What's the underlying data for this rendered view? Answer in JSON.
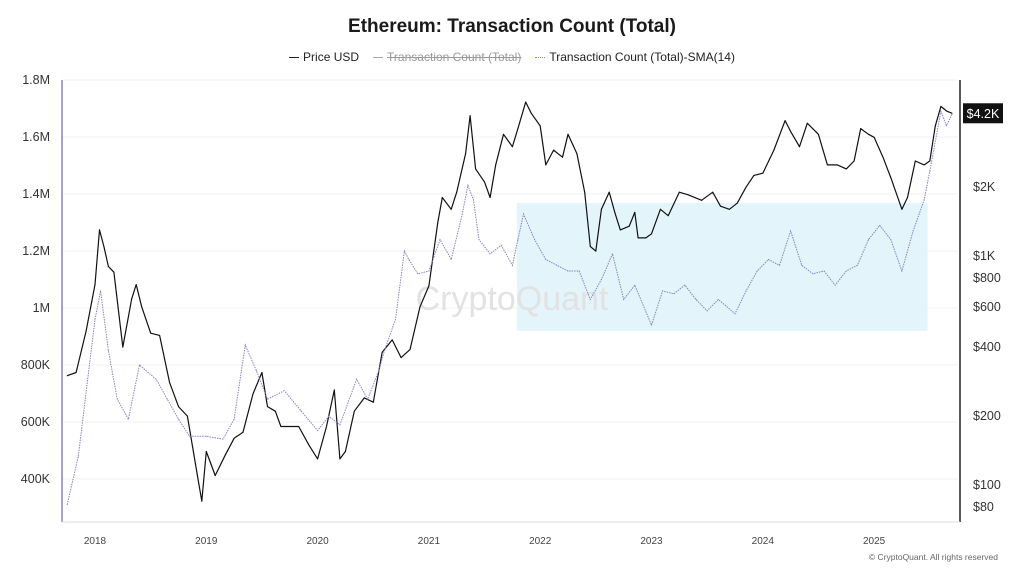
{
  "chart_data": {
    "type": "line",
    "title": "Ethereum: Transaction Count (Total)",
    "legend": [
      {
        "label": "Price USD",
        "active": true
      },
      {
        "label": "Transaction Count (Total)",
        "active": false
      },
      {
        "label": "Transaction Count (Total)-SMA(14)",
        "active": true
      }
    ],
    "watermark": "CryptoQuant",
    "copyright": "© CryptoQuant. All rights reserved",
    "x_ticks": [
      "2018",
      "2019",
      "2020",
      "2021",
      "2022",
      "2023",
      "2024",
      "2025"
    ],
    "xlim": [
      2017.7,
      2025.73
    ],
    "left_axis": {
      "ticks": [
        400000,
        600000,
        800000,
        1000000,
        1200000,
        1400000,
        1600000,
        1800000
      ],
      "tick_labels": [
        "400K",
        "600K",
        "800K",
        "1M",
        "1.2M",
        "1.4M",
        "1.6M",
        "1.8M"
      ],
      "range": [
        260000,
        1800000
      ]
    },
    "right_axis": {
      "scale": "log",
      "ticks": [
        80,
        100,
        200,
        400,
        600,
        800,
        1000,
        2000
      ],
      "tick_labels": [
        "$80",
        "$100",
        "$200",
        "$400",
        "$600",
        "$800",
        "$1K",
        "$2K"
      ],
      "current_label": "$4.2K",
      "current_value": 4200
    },
    "highlight_box": {
      "x": [
        2021.79,
        2025.48
      ],
      "y": [
        920000,
        1369000
      ],
      "color": "#e3f4fa"
    },
    "colors": {
      "price": "#111111",
      "sma": "#8a83c4",
      "left_axis": "#8a83c4"
    },
    "series": [
      {
        "name": "Price USD",
        "axis": "right",
        "x": [
          2017.75,
          2017.83,
          2017.92,
          2018.0,
          2018.04,
          2018.08,
          2018.12,
          2018.17,
          2018.25,
          2018.33,
          2018.37,
          2018.42,
          2018.5,
          2018.58,
          2018.67,
          2018.75,
          2018.83,
          2018.92,
          2018.96,
          2019.0,
          2019.08,
          2019.17,
          2019.25,
          2019.33,
          2019.42,
          2019.5,
          2019.55,
          2019.62,
          2019.67,
          2019.75,
          2019.83,
          2019.92,
          2020.0,
          2020.08,
          2020.15,
          2020.2,
          2020.25,
          2020.33,
          2020.42,
          2020.5,
          2020.58,
          2020.67,
          2020.75,
          2020.83,
          2020.92,
          2021.0,
          2021.08,
          2021.12,
          2021.2,
          2021.25,
          2021.33,
          2021.37,
          2021.42,
          2021.5,
          2021.55,
          2021.6,
          2021.67,
          2021.75,
          2021.8,
          2021.87,
          2021.92,
          2022.0,
          2022.05,
          2022.12,
          2022.2,
          2022.25,
          2022.33,
          2022.4,
          2022.45,
          2022.5,
          2022.55,
          2022.62,
          2022.67,
          2022.72,
          2022.8,
          2022.85,
          2022.88,
          2022.95,
          2023.0,
          2023.08,
          2023.15,
          2023.25,
          2023.33,
          2023.45,
          2023.55,
          2023.62,
          2023.7,
          2023.77,
          2023.85,
          2023.92,
          2024.0,
          2024.1,
          2024.2,
          2024.25,
          2024.33,
          2024.4,
          2024.5,
          2024.58,
          2024.67,
          2024.75,
          2024.82,
          2024.88,
          2024.95,
          2025.0,
          2025.08,
          2025.15,
          2025.25,
          2025.3,
          2025.37,
          2025.45,
          2025.5,
          2025.55,
          2025.6,
          2025.65,
          2025.7
        ],
        "values": [
          300,
          310,
          470,
          750,
          1300,
          1100,
          900,
          850,
          400,
          650,
          750,
          600,
          460,
          450,
          280,
          220,
          200,
          110,
          85,
          140,
          110,
          135,
          160,
          170,
          250,
          310,
          220,
          210,
          180,
          180,
          180,
          150,
          130,
          180,
          260,
          130,
          140,
          210,
          240,
          230,
          380,
          430,
          360,
          390,
          600,
          740,
          1400,
          1800,
          1600,
          1900,
          2800,
          4100,
          2400,
          2100,
          1800,
          2500,
          3400,
          3000,
          3600,
          4700,
          4200,
          3700,
          2500,
          2900,
          2700,
          3400,
          2800,
          1900,
          1100,
          1050,
          1600,
          1900,
          1550,
          1300,
          1350,
          1550,
          1200,
          1200,
          1250,
          1600,
          1500,
          1900,
          1850,
          1750,
          1900,
          1650,
          1600,
          1700,
          2000,
          2250,
          2300,
          2900,
          3900,
          3500,
          3000,
          3800,
          3400,
          2500,
          2500,
          2400,
          2600,
          3600,
          3400,
          3300,
          2700,
          2200,
          1600,
          1800,
          2600,
          2500,
          2600,
          3700,
          4500,
          4300,
          4200
        ]
      },
      {
        "name": "Transaction Count (Total)-SMA(14)",
        "axis": "left",
        "x": [
          2017.75,
          2017.85,
          2018.0,
          2018.05,
          2018.12,
          2018.2,
          2018.3,
          2018.4,
          2018.55,
          2018.65,
          2018.75,
          2018.85,
          2019.0,
          2019.15,
          2019.25,
          2019.35,
          2019.45,
          2019.55,
          2019.7,
          2019.85,
          2020.0,
          2020.1,
          2020.2,
          2020.35,
          2020.45,
          2020.55,
          2020.6,
          2020.7,
          2020.78,
          2020.82,
          2020.9,
          2021.0,
          2021.1,
          2021.2,
          2021.3,
          2021.35,
          2021.4,
          2021.45,
          2021.55,
          2021.65,
          2021.75,
          2021.8,
          2021.85,
          2021.95,
          2022.05,
          2022.15,
          2022.25,
          2022.35,
          2022.45,
          2022.55,
          2022.65,
          2022.75,
          2022.85,
          2023.0,
          2023.1,
          2023.2,
          2023.3,
          2023.4,
          2023.5,
          2023.6,
          2023.75,
          2023.85,
          2023.95,
          2024.05,
          2024.15,
          2024.25,
          2024.35,
          2024.45,
          2024.55,
          2024.65,
          2024.75,
          2024.85,
          2024.95,
          2025.05,
          2025.15,
          2025.25,
          2025.35,
          2025.45,
          2025.5,
          2025.6,
          2025.65,
          2025.7
        ],
        "values": [
          310000,
          480000,
          960000,
          1060000,
          850000,
          680000,
          610000,
          800000,
          750000,
          680000,
          610000,
          550000,
          550000,
          540000,
          610000,
          870000,
          780000,
          680000,
          710000,
          640000,
          570000,
          620000,
          590000,
          750000,
          680000,
          780000,
          850000,
          960000,
          1200000,
          1170000,
          1120000,
          1130000,
          1240000,
          1170000,
          1330000,
          1430000,
          1380000,
          1240000,
          1190000,
          1220000,
          1150000,
          1240000,
          1330000,
          1240000,
          1170000,
          1150000,
          1130000,
          1130000,
          1030000,
          1100000,
          1190000,
          1030000,
          1080000,
          940000,
          1060000,
          1050000,
          1080000,
          1030000,
          990000,
          1030000,
          980000,
          1060000,
          1130000,
          1170000,
          1150000,
          1270000,
          1150000,
          1120000,
          1130000,
          1080000,
          1130000,
          1150000,
          1240000,
          1290000,
          1240000,
          1130000,
          1270000,
          1380000,
          1480000,
          1690000,
          1640000,
          1680000
        ]
      }
    ]
  }
}
